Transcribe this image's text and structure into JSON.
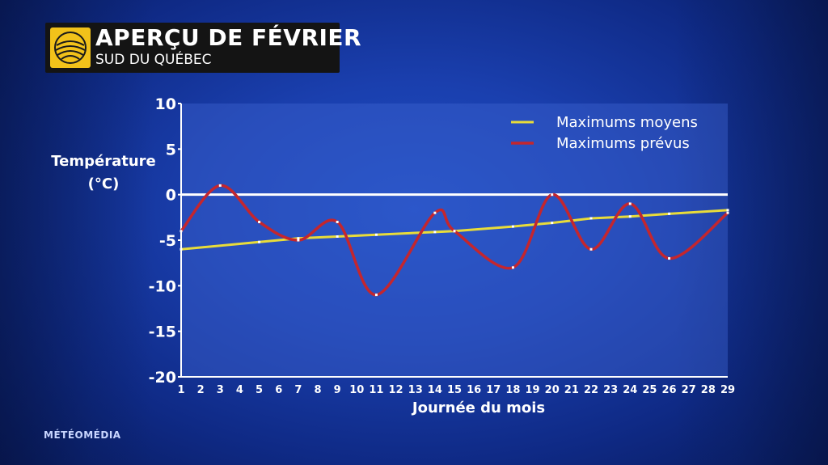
{
  "header": {
    "title": "APERÇU DE FÉVRIER",
    "subtitle": "SUD DU QUÉBEC"
  },
  "brand": "MÉTÉOMÉDIA",
  "colors": {
    "average_line": "#e8dc3a",
    "forecast_line": "#c4262e",
    "zero_line": "#ffffff"
  },
  "icons": {
    "logo": "sun-swirl-logo"
  },
  "chart_data": {
    "type": "line",
    "ylabel_line1": "Température",
    "ylabel_line2": "(°C)",
    "xlabel": "Journée du mois",
    "ylim": [
      -20,
      10
    ],
    "xlim": [
      1,
      29
    ],
    "y_ticks": [
      "10",
      "5",
      "0",
      "-5",
      "-10",
      "-15",
      "-20"
    ],
    "x_ticks": [
      "1",
      "2",
      "3",
      "4",
      "5",
      "6",
      "7",
      "8",
      "9",
      "10",
      "11",
      "12",
      "13",
      "14",
      "15",
      "16",
      "17",
      "18",
      "19",
      "20",
      "21",
      "22",
      "23",
      "24",
      "25",
      "26",
      "27",
      "28",
      "29"
    ],
    "legend_position": "top-right",
    "series": [
      {
        "name": "Maximums moyens",
        "x": [
          1,
          5,
          7,
          9,
          11,
          14,
          15,
          18,
          20,
          22,
          24,
          26,
          29
        ],
        "values": [
          -6,
          -5.2,
          -4.8,
          -4.6,
          -4.4,
          -4.1,
          -4.0,
          -3.5,
          -3.1,
          -2.6,
          -2.4,
          -2.1,
          -1.7
        ]
      },
      {
        "name": "Maximums prévus",
        "x": [
          1,
          3,
          5,
          7,
          9,
          11,
          14,
          15,
          18,
          20,
          22,
          24,
          26,
          29
        ],
        "values": [
          -4,
          1,
          -3,
          -5,
          -3,
          -11,
          -2,
          -4,
          -8,
          0,
          -6,
          -1,
          -7,
          -2
        ]
      }
    ]
  }
}
